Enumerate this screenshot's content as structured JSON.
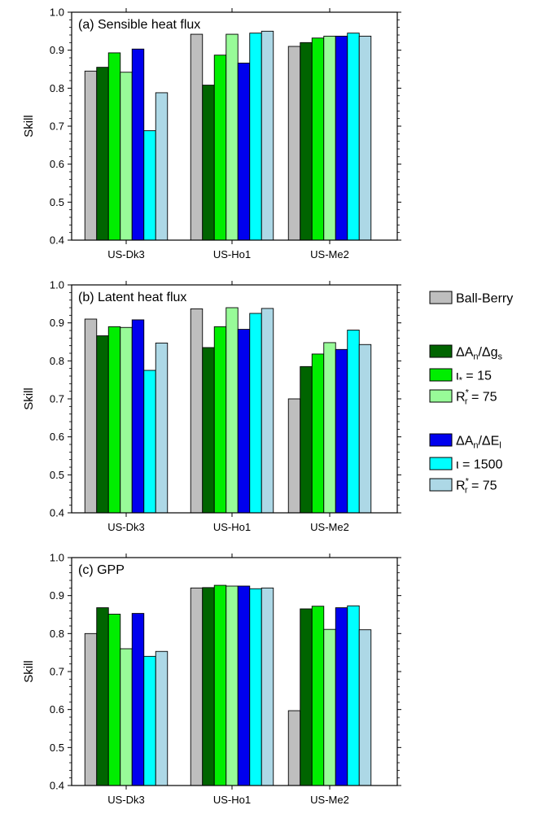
{
  "chart_data": [
    {
      "type": "bar",
      "title": "(a) Sensible heat flux",
      "ylabel": "Skill",
      "xlabel": "",
      "ylim": [
        0.4,
        1.0
      ],
      "yticks": [
        "0.4",
        "0.5",
        "0.6",
        "0.7",
        "0.8",
        "0.9",
        "1.0"
      ],
      "categories": [
        "US-Dk3",
        "US-Ho1",
        "US-Me2"
      ],
      "series": [
        {
          "values": [
            0.845,
            0.942,
            0.91
          ],
          "color": "#bebebe"
        },
        {
          "values": [
            0.855,
            0.808,
            0.92
          ],
          "color": "#006400"
        },
        {
          "values": [
            0.893,
            0.887,
            0.932
          ],
          "color": "#00ee00"
        },
        {
          "values": [
            0.842,
            0.942,
            0.937
          ],
          "color": "#98fb98"
        },
        {
          "values": [
            0.903,
            0.866,
            0.937
          ],
          "color": "#0000ee"
        },
        {
          "values": [
            0.688,
            0.945,
            0.945
          ],
          "color": "#00ffff"
        },
        {
          "values": [
            0.788,
            0.95,
            0.937
          ],
          "color": "#add8e6"
        }
      ]
    },
    {
      "type": "bar",
      "title": "(b) Latent heat flux",
      "ylabel": "Skill",
      "xlabel": "",
      "ylim": [
        0.4,
        1.0
      ],
      "yticks": [
        "0.4",
        "0.5",
        "0.6",
        "0.7",
        "0.8",
        "0.9",
        "1.0"
      ],
      "categories": [
        "US-Dk3",
        "US-Ho1",
        "US-Me2"
      ],
      "series": [
        {
          "values": [
            0.91,
            0.937,
            0.7
          ],
          "color": "#bebebe"
        },
        {
          "values": [
            0.866,
            0.835,
            0.785
          ],
          "color": "#006400"
        },
        {
          "values": [
            0.89,
            0.89,
            0.818
          ],
          "color": "#00ee00"
        },
        {
          "values": [
            0.888,
            0.94,
            0.848
          ],
          "color": "#98fb98"
        },
        {
          "values": [
            0.908,
            0.883,
            0.83
          ],
          "color": "#0000ee"
        },
        {
          "values": [
            0.775,
            0.925,
            0.881
          ],
          "color": "#00ffff"
        },
        {
          "values": [
            0.847,
            0.938,
            0.843
          ],
          "color": "#add8e6"
        }
      ]
    },
    {
      "type": "bar",
      "title": "(c) GPP",
      "ylabel": "Skill",
      "xlabel": "",
      "ylim": [
        0.4,
        1.0
      ],
      "yticks": [
        "0.4",
        "0.5",
        "0.6",
        "0.7",
        "0.8",
        "0.9",
        "1.0"
      ],
      "categories": [
        "US-Dk3",
        "US-Ho1",
        "US-Me2"
      ],
      "series": [
        {
          "values": [
            0.8,
            0.92,
            0.597
          ],
          "color": "#bebebe"
        },
        {
          "values": [
            0.868,
            0.921,
            0.865
          ],
          "color": "#006400"
        },
        {
          "values": [
            0.851,
            0.927,
            0.872
          ],
          "color": "#00ee00"
        },
        {
          "values": [
            0.76,
            0.925,
            0.811
          ],
          "color": "#98fb98"
        },
        {
          "values": [
            0.853,
            0.925,
            0.868
          ],
          "color": "#0000ee"
        },
        {
          "values": [
            0.74,
            0.918,
            0.873
          ],
          "color": "#00ffff"
        },
        {
          "values": [
            0.753,
            0.92,
            0.81
          ],
          "color": "#add8e6"
        }
      ]
    }
  ],
  "legend": {
    "placement": "right",
    "entries": [
      {
        "name": "Ball-Berry",
        "base": "Ball-Berry",
        "sub": "",
        "mid": "",
        "sub2": "",
        "color": "#bebebe"
      },
      {
        "name": "ΔAn/Δgs",
        "base": "ΔA",
        "sub": "n",
        "mid": "/Δg",
        "sub2": "s",
        "color": "#006400"
      },
      {
        "name": "ι* = 15",
        "base": "ι",
        "sub": "*",
        "mid": " = 15",
        "sub2": "",
        "color": "#00ee00"
      },
      {
        "name": "R*r = 75",
        "base": "R",
        "sup": "*",
        "sub": "r",
        "mid": " = 75",
        "sub2": "",
        "color": "#98fb98"
      },
      {
        "name": "ΔAn/ΔEl",
        "base": "ΔA",
        "sub": "n",
        "mid": "/ΔE",
        "sub2": "l",
        "color": "#0000ee"
      },
      {
        "name": "ι = 1500",
        "base": "ι = 1500",
        "sub": "",
        "mid": "",
        "sub2": "",
        "color": "#00ffff"
      },
      {
        "name": "R*r = 75",
        "base": "R",
        "sup": "*",
        "sub": "r",
        "mid": " = 75",
        "sub2": "",
        "color": "#add8e6"
      }
    ]
  }
}
